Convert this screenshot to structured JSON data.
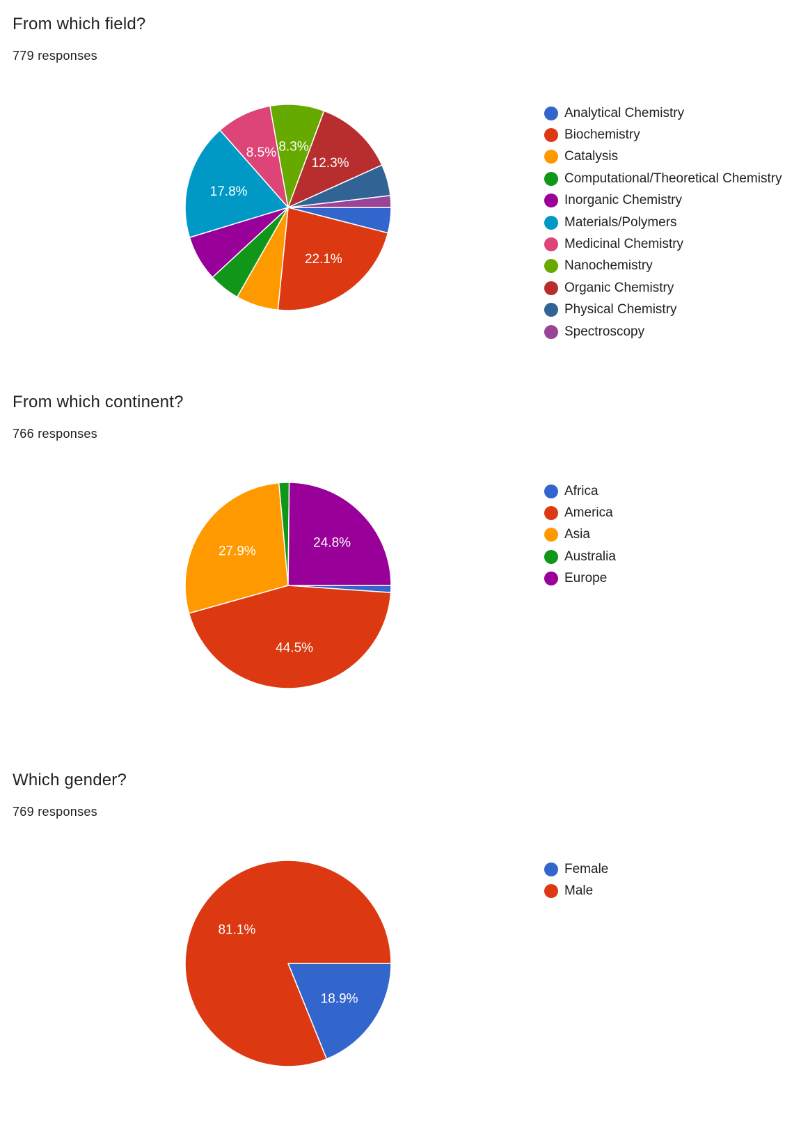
{
  "chart_data": [
    {
      "type": "pie",
      "title": "From which field?",
      "subtitle": "779 responses",
      "legend_position": "right",
      "slices": [
        {
          "label": "Analytical Chemistry",
          "value": 3.9,
          "display": "",
          "color": "#3366cc"
        },
        {
          "label": "Biochemistry",
          "value": 22.1,
          "display": "22.1%",
          "color": "#dc3912"
        },
        {
          "label": "Catalysis",
          "value": 6.5,
          "display": "",
          "color": "#ff9900"
        },
        {
          "label": "Computational/Theoretical Chemistry",
          "value": 4.8,
          "display": "",
          "color": "#109618"
        },
        {
          "label": "Inorganic Chemistry",
          "value": 7.0,
          "display": "",
          "color": "#990099"
        },
        {
          "label": "Materials/Polymers",
          "value": 17.8,
          "display": "17.8%",
          "color": "#0099c6"
        },
        {
          "label": "Medicinal Chemistry",
          "value": 8.5,
          "display": "8.5%",
          "color": "#dd4477"
        },
        {
          "label": "Nanochemistry",
          "value": 8.3,
          "display": "8.3%",
          "color": "#66aa00"
        },
        {
          "label": "Organic Chemistry",
          "value": 12.3,
          "display": "12.3%",
          "color": "#b82e2e"
        },
        {
          "label": "Physical Chemistry",
          "value": 4.8,
          "display": "",
          "color": "#316395"
        },
        {
          "label": "Spectroscopy",
          "value": 1.8,
          "display": "",
          "color": "#994499"
        }
      ]
    },
    {
      "type": "pie",
      "title": "From which continent?",
      "subtitle": "766 responses",
      "legend_position": "right",
      "slices": [
        {
          "label": "Africa",
          "value": 1.1,
          "display": "",
          "color": "#3366cc"
        },
        {
          "label": "America",
          "value": 44.5,
          "display": "44.5%",
          "color": "#dc3912"
        },
        {
          "label": "Asia",
          "value": 27.9,
          "display": "27.9%",
          "color": "#ff9900"
        },
        {
          "label": "Australia",
          "value": 1.6,
          "display": "",
          "color": "#109618"
        },
        {
          "label": "Europe",
          "value": 24.8,
          "display": "24.8%",
          "color": "#990099"
        }
      ]
    },
    {
      "type": "pie",
      "title": "Which gender?",
      "subtitle": "769 responses",
      "legend_position": "right",
      "slices": [
        {
          "label": "Female",
          "value": 18.9,
          "display": "18.9%",
          "color": "#3366cc"
        },
        {
          "label": "Male",
          "value": 81.1,
          "display": "81.1%",
          "color": "#dc3912"
        }
      ]
    }
  ]
}
